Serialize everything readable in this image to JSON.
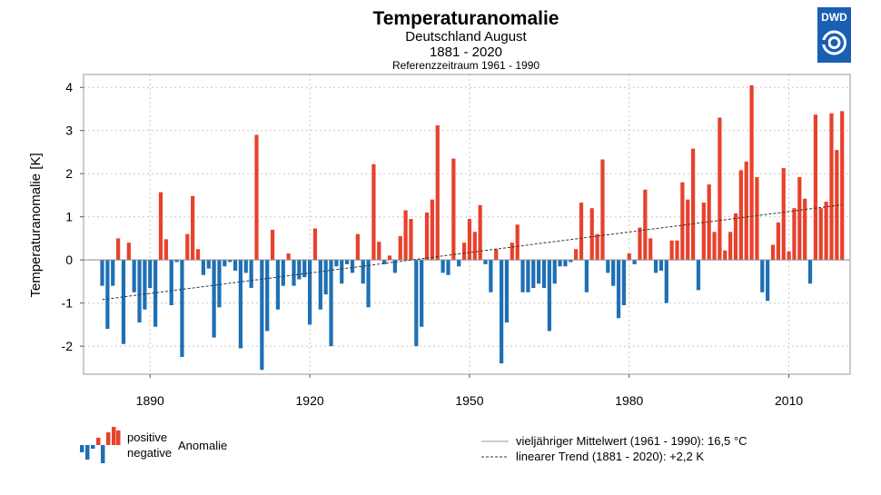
{
  "logo": {
    "text": "DWD",
    "color": "#1a5fb4"
  },
  "legend": {
    "positive_label": "positive",
    "negative_label": "negative",
    "anomaly_label": "Anomalie",
    "mean_label": "vieljähriger Mittelwert (1961 - 1990): 16,5 °C",
    "trend_label": "linearer Trend (1881 - 2020): +2,2 K"
  },
  "colors": {
    "positive": "#e8412c",
    "negative": "#1f6fb4",
    "grid": "#c8c8c8",
    "frame": "#999999"
  },
  "chart_data": {
    "type": "bar",
    "title": "Temperaturanomalie",
    "subtitle": "Deutschland August",
    "period": "1881 - 2020",
    "reference": "Referenzzeitraum 1961 - 1990",
    "ylabel": "Temperaturanomalie [K]",
    "xlabel": "",
    "xlim": [
      1877.5,
      2021.5
    ],
    "ylim": [
      -2.65,
      4.3
    ],
    "xticks": [
      1890,
      1920,
      1950,
      1980,
      2010
    ],
    "yticks": [
      -2,
      -1,
      0,
      1,
      2,
      3,
      4
    ],
    "grid": true,
    "start_year": 1881,
    "values": [
      -0.6,
      -1.6,
      -0.6,
      0.5,
      -1.95,
      0.4,
      -0.75,
      -1.45,
      -1.15,
      -0.65,
      -1.55,
      1.57,
      0.48,
      -1.05,
      -0.05,
      -2.25,
      0.6,
      1.48,
      0.25,
      -0.35,
      -0.2,
      -1.8,
      -1.1,
      -0.15,
      -0.05,
      -0.25,
      -2.05,
      -0.3,
      -0.65,
      2.9,
      -2.55,
      -1.65,
      0.7,
      -1.15,
      -0.6,
      0.15,
      -0.6,
      -0.45,
      -0.4,
      -1.5,
      0.73,
      -1.15,
      -0.8,
      -2.0,
      -0.15,
      -0.55,
      -0.1,
      -0.3,
      0.6,
      -0.55,
      -1.1,
      2.22,
      0.42,
      -0.1,
      0.1,
      -0.3,
      0.55,
      1.15,
      0.95,
      -2.0,
      -1.55,
      1.1,
      1.4,
      3.12,
      -0.3,
      -0.35,
      2.35,
      -0.15,
      0.4,
      0.95,
      0.65,
      1.27,
      -0.1,
      -0.75,
      0.25,
      -2.4,
      -1.45,
      0.4,
      0.82,
      -0.75,
      -0.75,
      -0.65,
      -0.55,
      -0.65,
      -1.65,
      -0.55,
      -0.15,
      -0.15,
      -0.05,
      0.25,
      1.33,
      -0.75,
      1.2,
      0.6,
      2.33,
      -0.3,
      -0.6,
      -1.35,
      -1.05,
      0.15,
      -0.1,
      0.75,
      1.63,
      0.5,
      -0.3,
      -0.25,
      -1.0,
      0.45,
      0.45,
      1.8,
      1.4,
      2.58,
      -0.7,
      1.33,
      1.75,
      0.65,
      3.3,
      0.22,
      0.65,
      1.08,
      2.08,
      2.28,
      4.05,
      1.92,
      -0.75,
      -0.95,
      0.35,
      0.87,
      2.13,
      0.2,
      1.2,
      1.92,
      1.42,
      -0.55,
      3.37,
      1.2,
      1.35,
      3.4,
      2.55,
      3.45
    ],
    "mean_value": 0,
    "trend": {
      "start": [
        1881,
        -0.92
      ],
      "end": [
        2020,
        1.28
      ]
    }
  }
}
